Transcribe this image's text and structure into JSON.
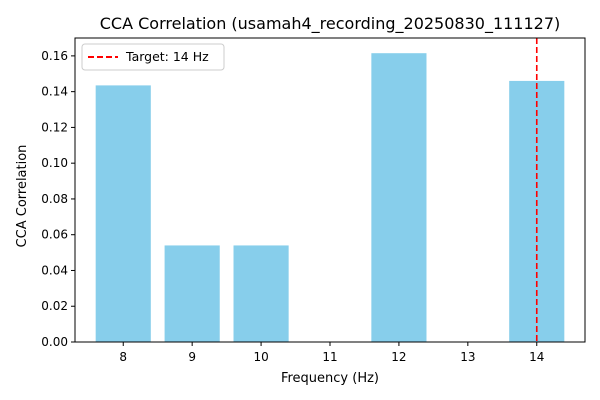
{
  "chart_data": {
    "type": "bar",
    "title": "CCA Correlation (usamah4_recording_20250830_111127)",
    "xlabel": "Frequency (Hz)",
    "ylabel": "CCA Correlation",
    "categories": [
      "8",
      "9",
      "10",
      "11",
      "12",
      "13",
      "14"
    ],
    "x": [
      8,
      9,
      10,
      11,
      12,
      13,
      14
    ],
    "values": [
      0.1435,
      0.054,
      0.054,
      0,
      0.1615,
      0,
      0.146
    ],
    "xlim": [
      7.3,
      14.7
    ],
    "ylim": [
      0,
      0.17
    ],
    "yticks": [
      "0.00",
      "0.02",
      "0.04",
      "0.06",
      "0.08",
      "0.10",
      "0.12",
      "0.14",
      "0.16"
    ],
    "grid": false,
    "bar_color": "#87CEEB",
    "annotations": [
      {
        "type": "vline",
        "x": 14,
        "color": "#ff0000",
        "style": "dashed",
        "label": "Target: 14 Hz"
      }
    ],
    "legend": {
      "placement": "top-left",
      "entries": [
        "Target: 14 Hz"
      ]
    }
  }
}
